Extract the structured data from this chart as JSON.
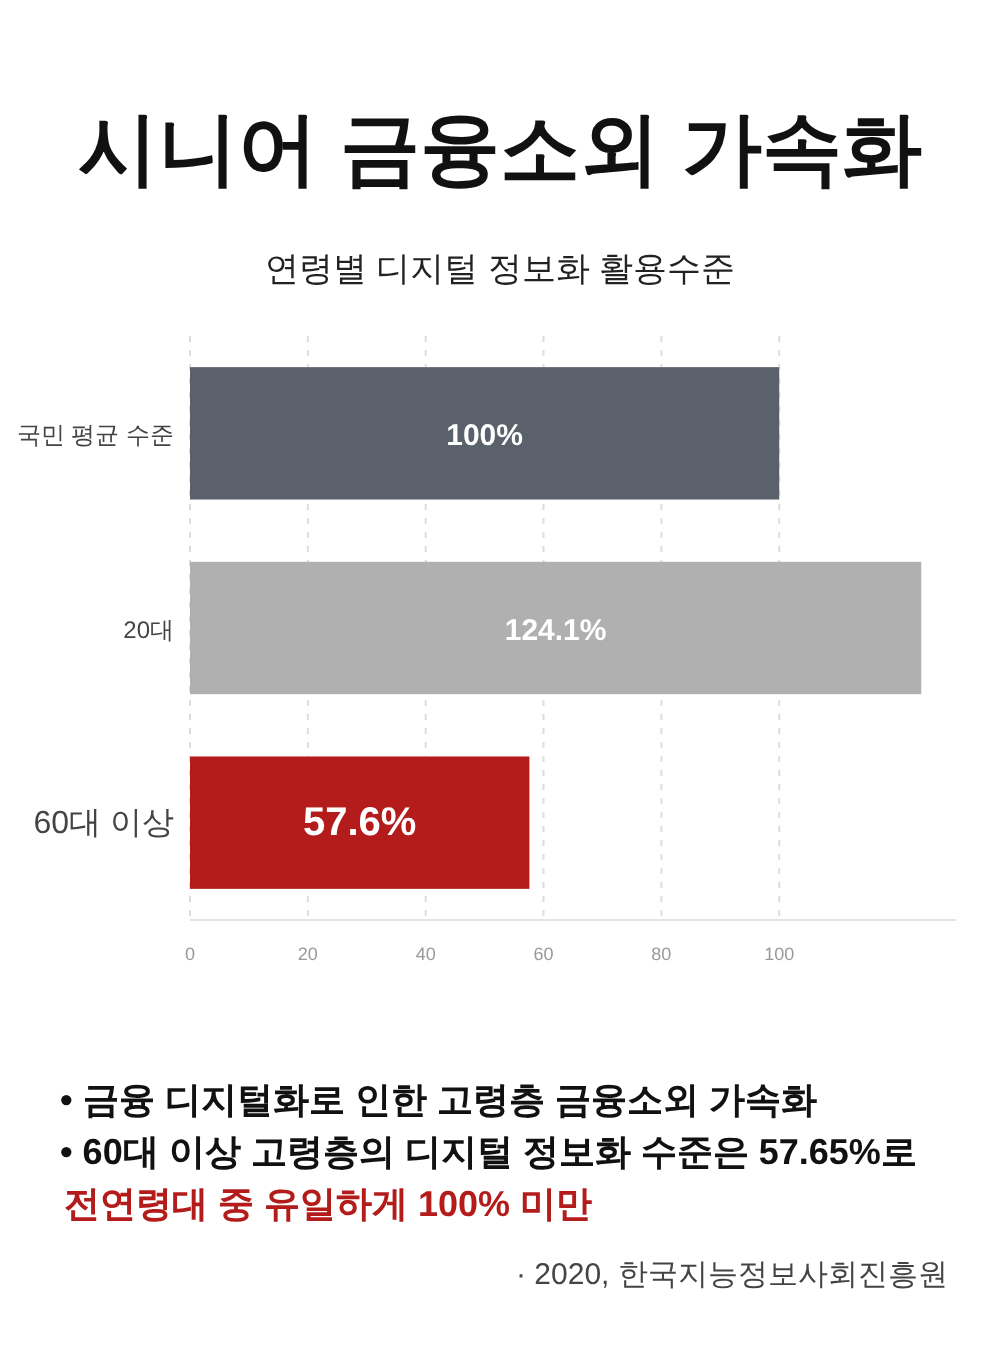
{
  "chart_data": {
    "type": "bar",
    "orientation": "horizontal",
    "title": "시니어 금융소외 가속화",
    "subtitle": "연령별 디지털 정보화 활용수준",
    "categories": [
      "국민 평균 수준",
      "20대",
      "60대 이상"
    ],
    "values": [
      100,
      124.1,
      57.6
    ],
    "value_labels": [
      "100%",
      "124.1%",
      "57.6%"
    ],
    "colors": [
      "#5a616b",
      "#b0b0b0",
      "#b41c1c"
    ],
    "xlim": [
      0,
      130
    ],
    "xticks": [
      0,
      20,
      40,
      60,
      80,
      100
    ],
    "grid": "x",
    "annotations": [
      "• 금융 디지털화로 인한 고령층 금융소외 가속화",
      "• 60대 이상 고령층의 디지털 정보화 수준은 57.65%로",
      "전연령대 중 유일하게 100% 미만",
      "· 2020, 한국지능정보사회진흥원"
    ]
  }
}
